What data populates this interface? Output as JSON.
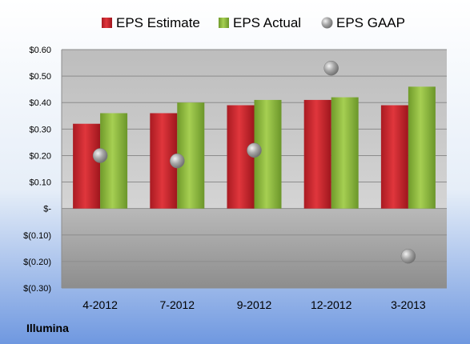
{
  "company_label": "Illumina",
  "colors": {
    "estimate": "#c8232b",
    "actual": "#8cb83c",
    "gaap": "#a9a9a9"
  },
  "chart_data": {
    "type": "bar",
    "categories": [
      "4-2012",
      "7-2012",
      "9-2012",
      "12-2012",
      "3-2013"
    ],
    "series": [
      {
        "name": "EPS Estimate",
        "kind": "bar",
        "values": [
          0.32,
          0.36,
          0.39,
          0.41,
          0.39
        ]
      },
      {
        "name": "EPS Actual",
        "kind": "bar",
        "values": [
          0.36,
          0.4,
          0.41,
          0.42,
          0.46
        ]
      },
      {
        "name": "EPS GAAP",
        "kind": "scatter",
        "values": [
          0.2,
          0.18,
          0.22,
          0.53,
          -0.18
        ]
      }
    ],
    "ylim": [
      -0.3,
      0.6
    ],
    "yticks": [
      0.6,
      0.5,
      0.4,
      0.3,
      0.2,
      0.1,
      0.0,
      -0.1,
      -0.2,
      -0.3
    ],
    "ytick_labels": [
      "$0.60",
      "$0.50",
      "$0.40",
      "$0.30",
      "$0.20",
      "$0.10",
      "$-",
      "$(0.10)",
      "$(0.20)",
      "$(0.30)"
    ],
    "title": "",
    "xlabel": "",
    "ylabel": "",
    "grid": true,
    "legend_position": "top-center"
  }
}
